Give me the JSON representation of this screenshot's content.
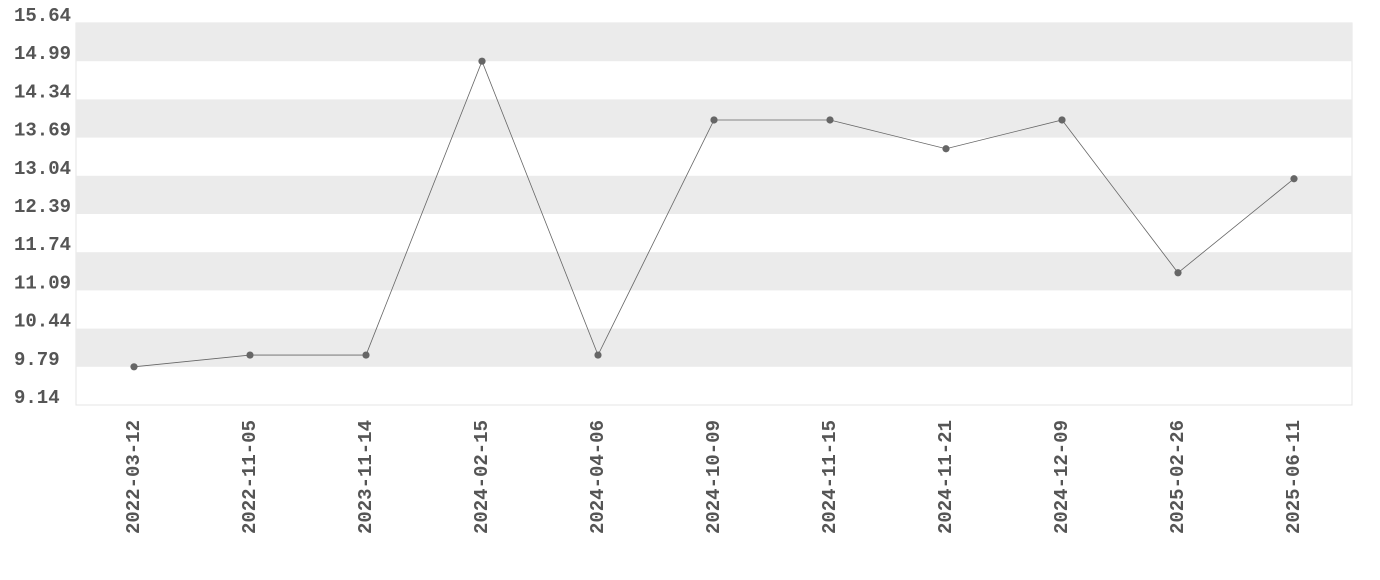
{
  "chart_data": {
    "type": "line",
    "categories": [
      "2022-03-12",
      "2022-11-05",
      "2023-11-14",
      "2024-02-15",
      "2024-04-06",
      "2024-10-09",
      "2024-11-15",
      "2024-11-21",
      "2024-12-09",
      "2025-02-26",
      "2025-06-11"
    ],
    "values": [
      9.79,
      9.99,
      9.99,
      14.99,
      9.99,
      13.99,
      13.99,
      13.5,
      13.99,
      11.39,
      12.99
    ],
    "color": "#666666",
    "ylim": [
      9.14,
      15.64
    ],
    "yticks": [
      9.14,
      9.79,
      10.44,
      11.09,
      11.74,
      12.39,
      13.04,
      13.69,
      14.34,
      14.99,
      15.64
    ],
    "grid": "bands",
    "band_color": "#ebebeb"
  }
}
